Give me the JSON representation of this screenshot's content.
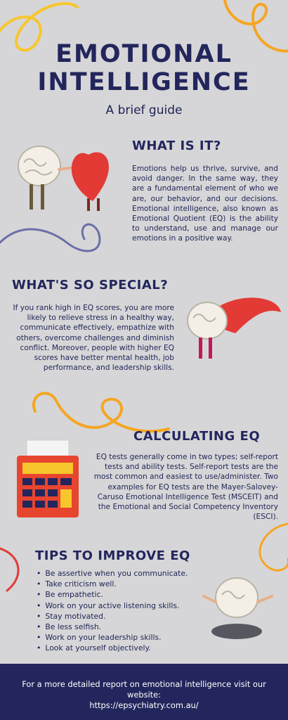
{
  "header": {
    "title_line1": "EMOTIONAL",
    "title_line2": "INTELLIGENCE",
    "subtitle": "A brief guide"
  },
  "sections": {
    "what": {
      "heading": "WHAT IS IT?",
      "body": "Emotions help us thrive, survive, and avoid danger. In the same way, they are a fundamental element of who we are, our behavior, and our decisions. Emotional intelligence, also known as Emotional Quotient (EQ) is the ability to understand, use and manage our emotions in a positive way."
    },
    "special": {
      "heading": "WHAT'S SO SPECIAL?",
      "body": "If you rank high in EQ scores, you are more likely to relieve stress in a healthy way, communicate effectively, empathize with others, overcome challenges and diminish conflict. Moreover, people with higher EQ scores have better mental health, job performance, and leadership skills."
    },
    "calc": {
      "heading": "CALCULATING EQ",
      "body": "EQ tests generally come in two types; self-report tests and ability tests. Self-report tests are the most common and easiest to use/administer. Two examples for EQ tests are the Mayer-Salovey-Caruso Emotional Intelligence Test (MSCEIT) and the Emotional and Social Competency Inventory (ESCI)."
    },
    "tips": {
      "heading": "TIPS TO IMPROVE EQ",
      "items": [
        "Be assertive when you communicate.",
        "Take criticism well.",
        "Be empathetic.",
        "Work on your active listening skills.",
        "Stay motivated.",
        "Be less selfish.",
        "Work on your leadership skills.",
        "Look at yourself objectively."
      ]
    }
  },
  "footer": {
    "line1": "For a more detailed report on emotional intelligence visit our website:",
    "line2": "https://epsychiatry.com.au/"
  },
  "colors": {
    "background": "#d6d6d8",
    "navy": "#23265c",
    "accent_red": "#e33a36",
    "accent_yellow": "#f7c62c",
    "accent_purple": "#6b6fa8"
  }
}
